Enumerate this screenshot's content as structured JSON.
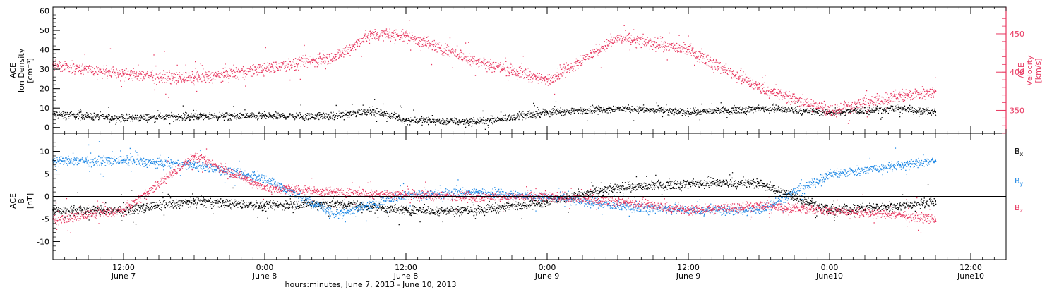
{
  "chart_data": [
    {
      "type": "scatter",
      "panel": "top",
      "ylabel_left": [
        "ACE",
        "Ion Density",
        "[cm⁻³]"
      ],
      "ylabel_right": [
        "ACE",
        "Velocity",
        "[km/s]"
      ],
      "ylim_left": [
        -3,
        62
      ],
      "yticks_left": [
        0,
        10,
        20,
        30,
        40,
        50,
        60
      ],
      "ylim_right": [
        320,
        485
      ],
      "yticks_right": [
        350,
        400,
        450
      ],
      "series": [
        {
          "axis": "left",
          "color": "#000000",
          "x": [
            "2013-06-07T06:00",
            "2013-06-07T12:00",
            "2013-06-07T18:00",
            "2013-06-08T00:00",
            "2013-06-08T06:00",
            "2013-06-08T09:00",
            "2013-06-08T12:00",
            "2013-06-08T18:00",
            "2013-06-09T00:00",
            "2013-06-09T06:00",
            "2013-06-09T12:00",
            "2013-06-09T18:00",
            "2013-06-10T00:00",
            "2013-06-10T06:00",
            "2013-06-10T09:00"
          ],
          "y": [
            7,
            5,
            6,
            6,
            6,
            9,
            4,
            3,
            8,
            10,
            8,
            10,
            8,
            10,
            8
          ]
        },
        {
          "axis": "right",
          "color": "#e8365f",
          "x": [
            "2013-06-07T06:00",
            "2013-06-07T12:00",
            "2013-06-07T18:00",
            "2013-06-08T00:00",
            "2013-06-08T06:00",
            "2013-06-08T09:00",
            "2013-06-08T12:00",
            "2013-06-08T18:00",
            "2013-06-09T00:00",
            "2013-06-09T06:00",
            "2013-06-09T12:00",
            "2013-06-09T18:00",
            "2013-06-10T00:00",
            "2013-06-10T06:00",
            "2013-06-10T09:00"
          ],
          "y": [
            410,
            398,
            392,
            405,
            420,
            450,
            448,
            415,
            390,
            445,
            430,
            380,
            350,
            370,
            375
          ]
        }
      ]
    },
    {
      "type": "scatter",
      "panel": "bottom",
      "ylabel": [
        "ACE",
        "B",
        "[nT]"
      ],
      "ylim": [
        -14,
        14
      ],
      "yticks": [
        -10,
        -5,
        0,
        5,
        10
      ],
      "series": [
        {
          "name": "Bx",
          "color": "#000000",
          "x": [
            "2013-06-07T06:00",
            "2013-06-07T12:00",
            "2013-06-07T18:00",
            "2013-06-08T00:00",
            "2013-06-08T06:00",
            "2013-06-08T12:00",
            "2013-06-08T18:00",
            "2013-06-09T00:00",
            "2013-06-09T06:00",
            "2013-06-09T12:00",
            "2013-06-09T18:00",
            "2013-06-10T00:00",
            "2013-06-10T06:00",
            "2013-06-10T09:00"
          ],
          "y": [
            -3,
            -3,
            -1,
            -2,
            -1.5,
            -3,
            -3,
            -1,
            2,
            3,
            3,
            -3,
            -2,
            -1
          ]
        },
        {
          "name": "By",
          "color": "#1e88e5",
          "x": [
            "2013-06-07T06:00",
            "2013-06-07T12:00",
            "2013-06-07T18:00",
            "2013-06-08T00:00",
            "2013-06-08T06:00",
            "2013-06-08T12:00",
            "2013-06-08T18:00",
            "2013-06-09T00:00",
            "2013-06-09T06:00",
            "2013-06-09T12:00",
            "2013-06-09T18:00",
            "2013-06-10T00:00",
            "2013-06-10T06:00",
            "2013-06-10T09:00"
          ],
          "y": [
            8,
            8,
            7,
            4,
            -4,
            0.5,
            1,
            0,
            -2,
            -3,
            -3,
            5,
            7,
            8
          ]
        },
        {
          "name": "Bz",
          "color": "#e8365f",
          "x": [
            "2013-06-07T06:00",
            "2013-06-07T12:00",
            "2013-06-07T18:00",
            "2013-06-08T00:00",
            "2013-06-08T06:00",
            "2013-06-08T12:00",
            "2013-06-08T18:00",
            "2013-06-09T00:00",
            "2013-06-09T06:00",
            "2013-06-09T12:00",
            "2013-06-09T18:00",
            "2013-06-10T00:00",
            "2013-06-10T06:00",
            "2013-06-10T09:00"
          ],
          "y": [
            -5,
            -3,
            9,
            2,
            1,
            0.5,
            0,
            0,
            -1,
            -3,
            -2,
            -3,
            -4,
            -5
          ]
        }
      ],
      "legend": {
        "placement": "right",
        "entries": [
          {
            "base": "B",
            "sub": "x",
            "color": "#000000"
          },
          {
            "base": "B",
            "sub": "y",
            "color": "#1e88e5"
          },
          {
            "base": "B",
            "sub": "z",
            "color": "#e8365f"
          }
        ]
      }
    }
  ],
  "x_axis": {
    "start": "2013-06-07T06:00",
    "end": "2013-06-10T15:00",
    "ticks": [
      {
        "t": "2013-06-07T12:00",
        "time": "12:00",
        "date": "June 7"
      },
      {
        "t": "2013-06-08T00:00",
        "time": "0:00",
        "date": "June 8"
      },
      {
        "t": "2013-06-08T12:00",
        "time": "12:00",
        "date": "June 8"
      },
      {
        "t": "2013-06-09T00:00",
        "time": "0:00",
        "date": "June 9"
      },
      {
        "t": "2013-06-09T12:00",
        "time": "12:00",
        "date": "June 9"
      },
      {
        "t": "2013-06-10T00:00",
        "time": "0:00",
        "date": "June10"
      },
      {
        "t": "2013-06-10T12:00",
        "time": "12:00",
        "date": "June10"
      }
    ],
    "minor_tick_hours": 1,
    "major_tick_hours": 3,
    "xlabel": "hours:minutes, June  7, 2013 - June 10, 2013"
  }
}
